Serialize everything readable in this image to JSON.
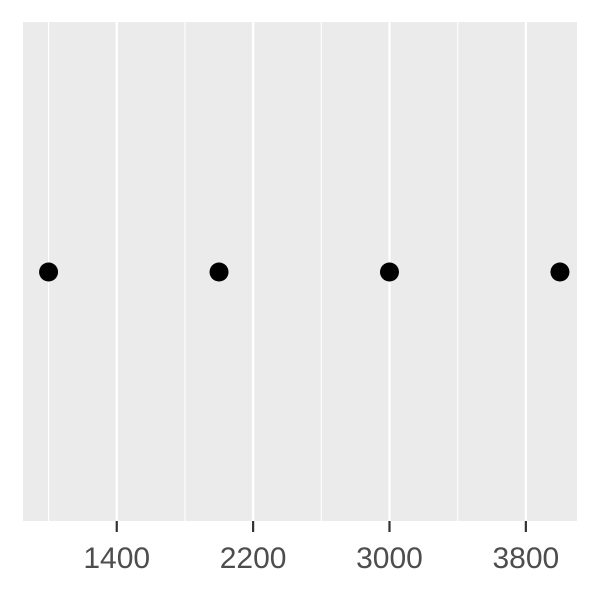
{
  "chart_data": {
    "type": "scatter",
    "title": "",
    "xlabel": "",
    "ylabel": "",
    "xlim": [
      850,
      4100
    ],
    "x_ticks": [
      1400,
      2200,
      3000,
      3800
    ],
    "x_tick_labels": [
      "1400",
      "2200",
      "3000",
      "3800"
    ],
    "x_minor_breaks": [
      1000,
      1800,
      2600,
      3400
    ],
    "grid": true,
    "y_axis_shown": false,
    "points": [
      {
        "x": 1000,
        "y": 0
      },
      {
        "x": 2000,
        "y": 0
      },
      {
        "x": 3000,
        "y": 0
      },
      {
        "x": 4000,
        "y": 0
      }
    ]
  },
  "colors": {
    "panel_background": "#EBEBEB",
    "major_grid": "#FFFFFF",
    "minor_grid": "#FFFFFF",
    "point": "#000000",
    "tick": "#333333",
    "tick_label": "#4D4D4D"
  }
}
